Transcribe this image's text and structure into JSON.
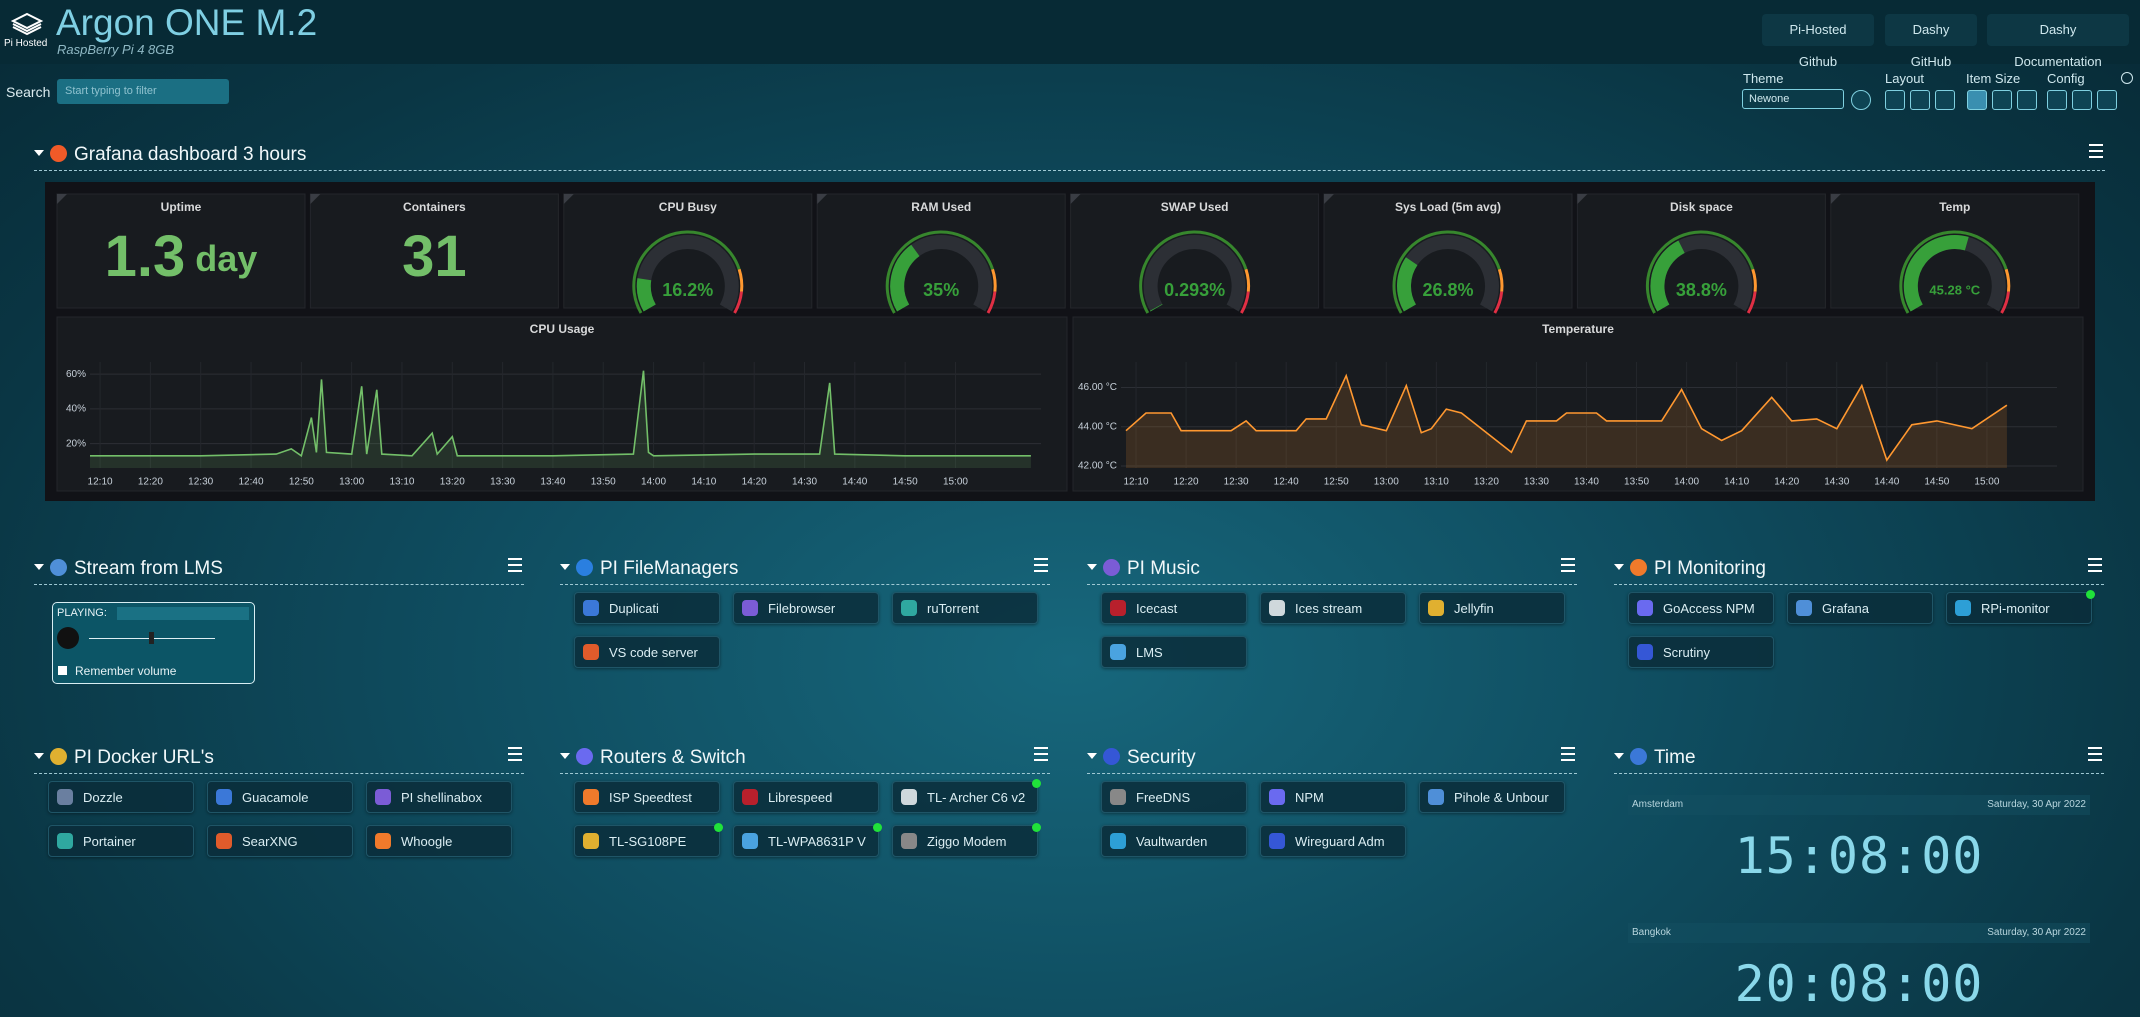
{
  "header": {
    "logo_text": "Pi Hosted",
    "title": "Argon ONE M.2",
    "subtitle": "RaspBerry Pi 4 8GB",
    "links": [
      "Pi-Hosted Github",
      "Dashy GitHub",
      "Dashy Documentation"
    ]
  },
  "toolbar": {
    "search_label": "Search",
    "search_placeholder": "Start typing to filter",
    "theme_label": "Theme",
    "theme_value": "Newone",
    "layout_label": "Layout",
    "item_size_label": "Item Size",
    "config_label": "Config"
  },
  "grafana": {
    "title": "Grafana dashboard 3 hours",
    "stats": [
      {
        "title": "Uptime",
        "value": 1.3,
        "unit": "day"
      },
      {
        "title": "Containers",
        "value": 31
      }
    ],
    "gauges": [
      {
        "title": "CPU Busy",
        "value": 16.2,
        "value_label": "16.2%",
        "ylim": [
          0,
          100
        ]
      },
      {
        "title": "RAM Used",
        "value": 35,
        "value_label": "35%",
        "ylim": [
          0,
          100
        ]
      },
      {
        "title": "SWAP Used",
        "value": 0.293,
        "value_label": "0.293%",
        "ylim": [
          0,
          100
        ]
      },
      {
        "title": "Sys Load (5m avg)",
        "value": 26.8,
        "value_label": "26.8%",
        "ylim": [
          0,
          100
        ]
      },
      {
        "title": "Disk space",
        "value": 38.8,
        "value_label": "38.8%",
        "ylim": [
          0,
          100
        ]
      },
      {
        "title": "Temp",
        "value": 45.28,
        "value_label": "45.28 °C",
        "ylim": [
          0,
          80
        ]
      }
    ]
  },
  "chart_data": [
    {
      "type": "line",
      "title": "CPU Usage",
      "color": "#73bf69",
      "grid": true,
      "x": [
        "12:08",
        "12:30",
        "12:45",
        "12:48",
        "12:50",
        "12:52",
        "12:53",
        "12:54",
        "12:55",
        "13:00",
        "13:02",
        "13:03",
        "13:05",
        "13:06",
        "13:12",
        "13:16",
        "13:17",
        "13:20",
        "13:21",
        "13:40",
        "13:56",
        "13:58",
        "13:59",
        "14:00",
        "14:20",
        "14:33",
        "14:35",
        "14:36",
        "14:50",
        "15:05",
        "15:15"
      ],
      "values": [
        13,
        13,
        14,
        17,
        13,
        35,
        15,
        57,
        15,
        14,
        53,
        14,
        51,
        14,
        13,
        26,
        14,
        24,
        13,
        13,
        14,
        62,
        15,
        13,
        14,
        14,
        55,
        14,
        13,
        13,
        13
      ],
      "xlim": [
        "12:08",
        "15:17"
      ],
      "ylim": [
        6,
        67
      ],
      "xticks": [
        "12:10",
        "12:20",
        "12:30",
        "12:40",
        "12:50",
        "13:00",
        "13:10",
        "13:20",
        "13:30",
        "13:40",
        "13:50",
        "14:00",
        "14:10",
        "14:20",
        "14:30",
        "14:40",
        "14:50",
        "15:00"
      ],
      "yticks": [
        {
          "value": 20,
          "label": "20%"
        },
        {
          "value": 40,
          "label": "40%"
        },
        {
          "value": 60,
          "label": "60%"
        }
      ]
    },
    {
      "type": "line",
      "title": "Temperature",
      "color": "#ff9830",
      "grid": true,
      "x": [
        "12:08",
        "12:12",
        "12:17",
        "12:19",
        "12:29",
        "12:32",
        "12:34",
        "12:42",
        "12:44",
        "12:48",
        "12:52",
        "12:55",
        "13:00",
        "13:04",
        "13:07",
        "13:09",
        "13:12",
        "13:15",
        "13:18",
        "13:25",
        "13:28",
        "13:34",
        "13:36",
        "13:42",
        "13:44",
        "13:55",
        "13:59",
        "14:03",
        "14:07",
        "14:11",
        "14:17",
        "14:21",
        "14:26",
        "14:30",
        "14:35",
        "14:40",
        "14:45",
        "14:50",
        "14:57",
        "15:04"
      ],
      "values": [
        43.8,
        44.7,
        44.7,
        43.8,
        43.8,
        44.3,
        43.8,
        43.8,
        44.4,
        44.4,
        46.6,
        44.1,
        43.8,
        46.1,
        43.7,
        43.9,
        44.9,
        44.7,
        44.1,
        42.7,
        44.3,
        44.3,
        44.7,
        44.7,
        44.3,
        44.3,
        45.9,
        43.9,
        43.3,
        43.8,
        45.5,
        44.3,
        44.4,
        43.9,
        46.1,
        42.3,
        44.1,
        44.3,
        43.9,
        45.1
      ],
      "xlim": [
        "12:07",
        "15:14"
      ],
      "ylim": [
        41.9,
        47.3
      ],
      "xticks": [
        "12:10",
        "12:20",
        "12:30",
        "12:40",
        "12:50",
        "13:00",
        "13:10",
        "13:20",
        "13:30",
        "13:40",
        "13:50",
        "14:00",
        "14:10",
        "14:20",
        "14:30",
        "14:40",
        "14:50",
        "15:00"
      ],
      "yticks": [
        {
          "value": 42,
          "label": "42.00 °C"
        },
        {
          "value": 44,
          "label": "44.00 °C"
        },
        {
          "value": 46,
          "label": "46.00 °C"
        }
      ]
    }
  ],
  "sections": [
    {
      "title": "Stream from LMS",
      "player": {
        "status_label": "PLAYING:",
        "remember_label": "Remember volume"
      }
    },
    {
      "title": "PI FileManagers",
      "items": [
        {
          "name": "Duplicati"
        },
        {
          "name": "Filebrowser"
        },
        {
          "name": "ruTorrent"
        },
        {
          "name": "VS code server"
        }
      ]
    },
    {
      "title": "PI Music",
      "items": [
        {
          "name": "Icecast"
        },
        {
          "name": "Ices stream"
        },
        {
          "name": "Jellyfin"
        },
        {
          "name": "LMS"
        }
      ]
    },
    {
      "title": "PI Monitoring",
      "items": [
        {
          "name": "GoAccess NPM"
        },
        {
          "name": "Grafana"
        },
        {
          "name": "RPi-monitor",
          "online": true
        },
        {
          "name": "Scrutiny"
        }
      ]
    },
    {
      "title": "PI Docker URL's",
      "items": [
        {
          "name": "Dozzle"
        },
        {
          "name": "Guacamole"
        },
        {
          "name": "PI shellinabox"
        },
        {
          "name": "Portainer"
        },
        {
          "name": "SearXNG"
        },
        {
          "name": "Whoogle"
        }
      ]
    },
    {
      "title": "Routers & Switch",
      "items": [
        {
          "name": "ISP Speedtest"
        },
        {
          "name": "Librespeed"
        },
        {
          "name": "TL- Archer C6 v2",
          "online": true
        },
        {
          "name": "TL-SG108PE",
          "online": true
        },
        {
          "name": "TL-WPA8631P V",
          "online": true
        },
        {
          "name": "Ziggo Modem",
          "online": true
        }
      ]
    },
    {
      "title": "Security",
      "items": [
        {
          "name": "FreeDNS"
        },
        {
          "name": "NPM"
        },
        {
          "name": "Pihole & Unbour"
        },
        {
          "name": "Vaultwarden"
        },
        {
          "name": "Wireguard Adm"
        }
      ]
    },
    {
      "title": "Time",
      "clocks": [
        {
          "city": "Amsterdam",
          "date": "Saturday, 30 Apr 2022",
          "time": "15:08:00"
        },
        {
          "city": "Bangkok",
          "date": "Saturday, 30 Apr 2022",
          "time": "20:08:00"
        }
      ]
    }
  ]
}
